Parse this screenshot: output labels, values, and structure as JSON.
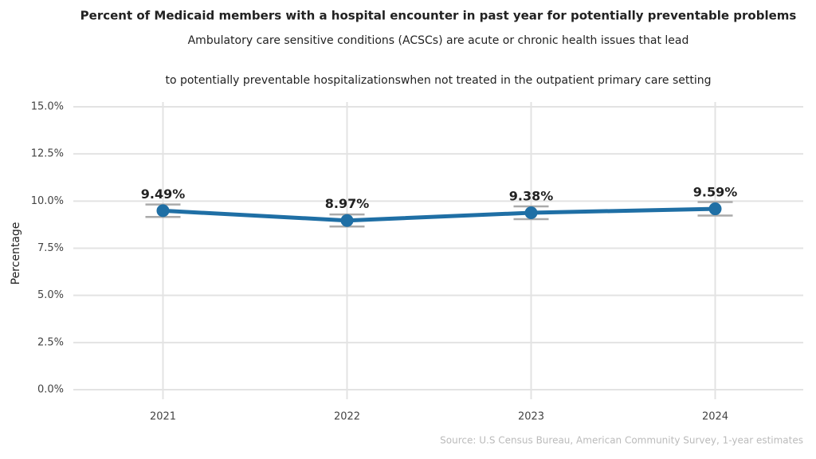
{
  "chart_data": {
    "type": "line",
    "title": "Percent of Medicaid members with a hospital encounter in past year for potentially preventable problems",
    "subtitle": [
      "Ambulatory care sensitive conditions (ACSCs) are acute or chronic health issues that lead",
      "to potentially preventable hospitalizationswhen not treated in the outpatient primary care setting"
    ],
    "y_label": "Percentage",
    "source": "Source: U.S Census Bureau, American Community Survey, 1-year estimates",
    "categories": [
      "2021",
      "2022",
      "2023",
      "2024"
    ],
    "series": [
      {
        "name": "Percentage",
        "color": "#1f6fa5",
        "values": [
          9.49,
          8.97,
          9.38,
          9.59
        ],
        "value_labels": [
          "9.49%",
          "8.97%",
          "9.38%",
          "9.59%"
        ],
        "errors": [
          0.33,
          0.32,
          0.34,
          0.36
        ]
      }
    ],
    "error_color": "#aaaaaa",
    "ylim": [
      0,
      15
    ],
    "yticks": [
      {
        "value": 0,
        "label": "0.0%"
      },
      {
        "value": 2.5,
        "label": "2.5%"
      },
      {
        "value": 5,
        "label": "5.0%"
      },
      {
        "value": 7.5,
        "label": "7.5%"
      },
      {
        "value": 10,
        "label": "10.0%"
      },
      {
        "value": 12.5,
        "label": "12.5%"
      },
      {
        "value": 15,
        "label": "15.0%"
      }
    ],
    "grid": true
  }
}
